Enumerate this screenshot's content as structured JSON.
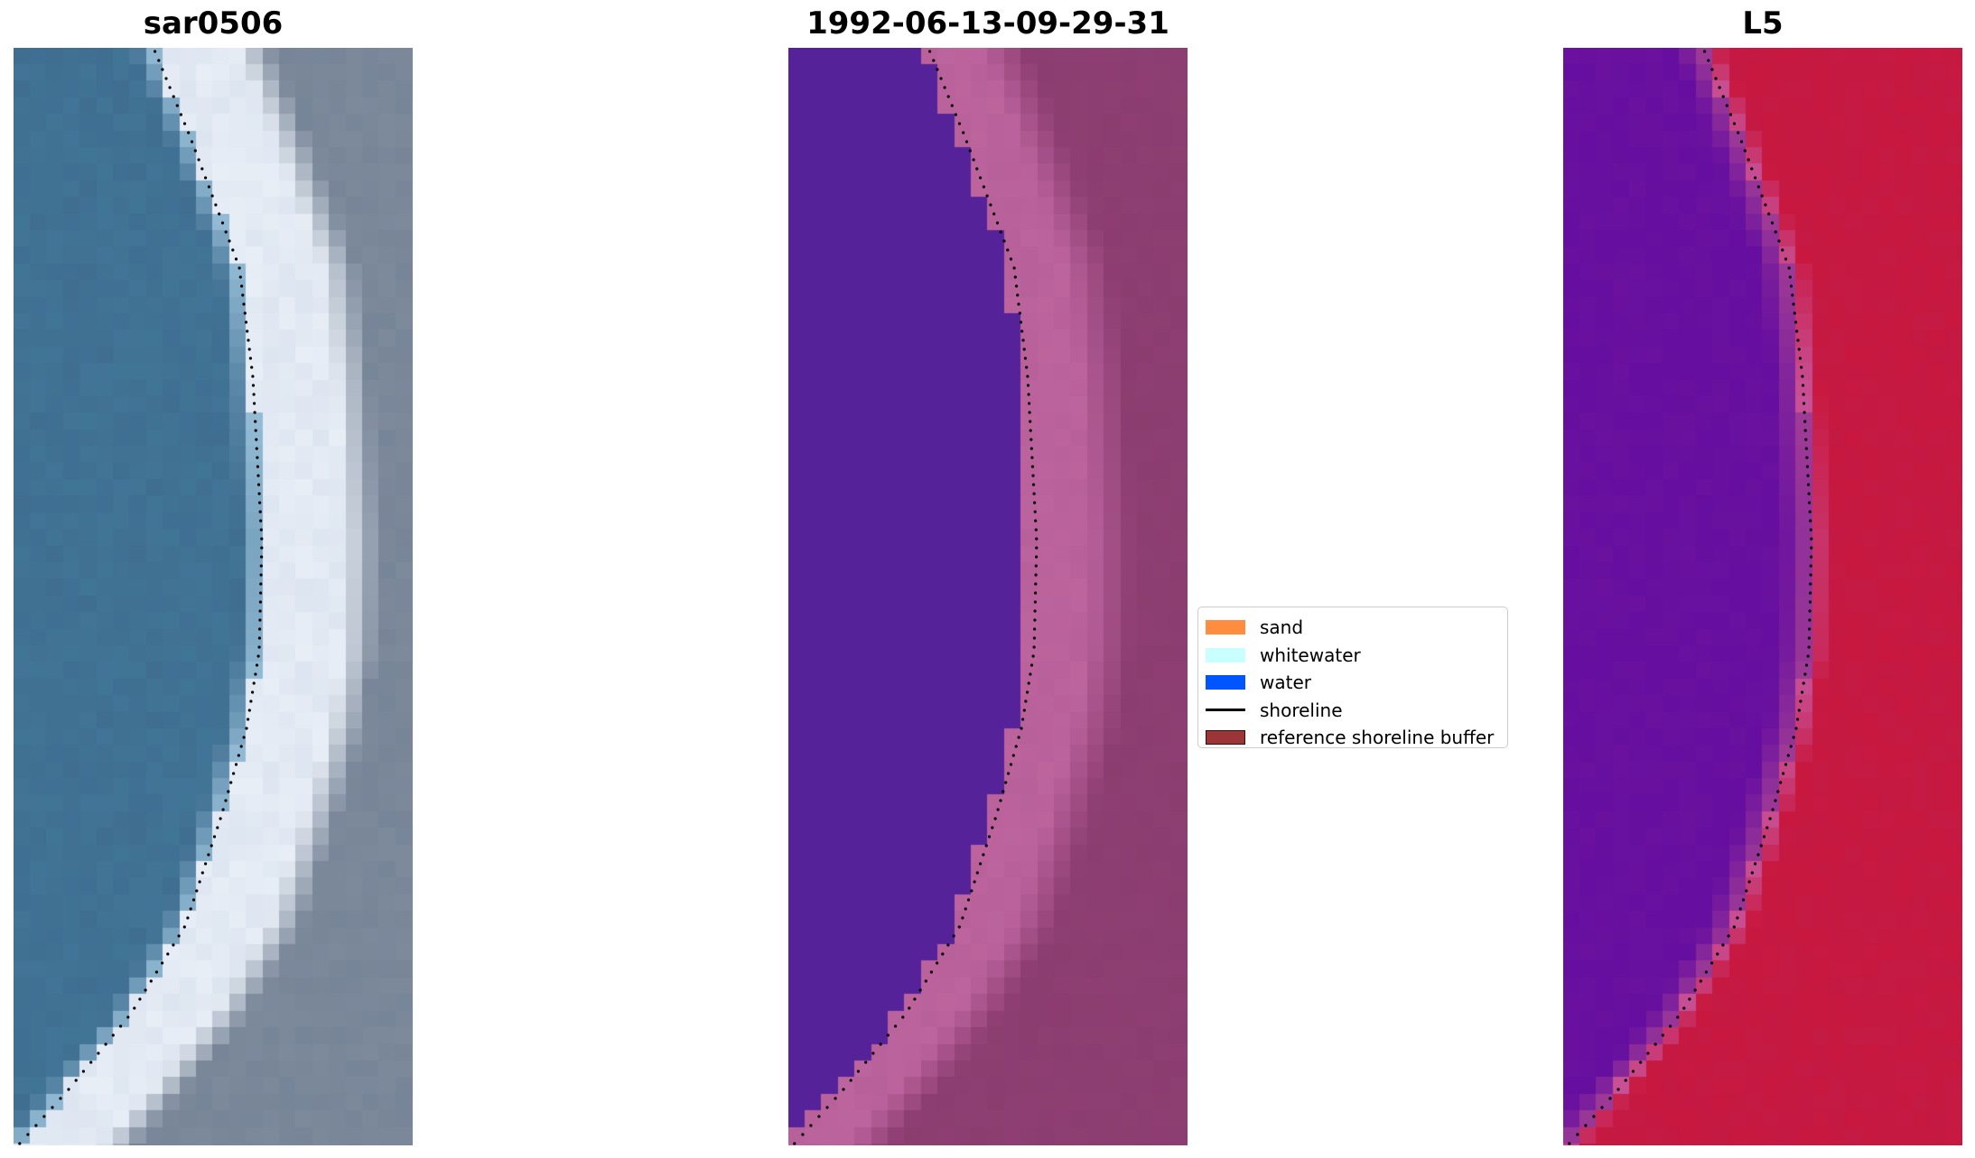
{
  "panels": [
    {
      "title": "sar0506",
      "kind": "rgb"
    },
    {
      "title": "1992-06-13-09-29-31",
      "kind": "classified"
    },
    {
      "title": "L5",
      "kind": "mndwi"
    }
  ],
  "legend": {
    "items": [
      {
        "label": "sand",
        "type": "patch",
        "color": "#ff8c3f"
      },
      {
        "label": "whitewater",
        "type": "patch",
        "color": "#c8ffff"
      },
      {
        "label": "water",
        "type": "patch",
        "color": "#0055ff"
      },
      {
        "label": "shoreline",
        "type": "line",
        "color": "#000000"
      },
      {
        "label": "reference shoreline buffer",
        "type": "patch",
        "color": "#9b3538"
      }
    ]
  },
  "colors": {
    "water_rgb": "#3f6e91",
    "beach_rgb": "#e8eef6",
    "land_rgb": "#7d8a9c",
    "water_class": "#55229a",
    "beach_class": "#b8609a",
    "land_class": "#8b3c70",
    "buffer": "#c23448",
    "water_index": "#6a119f",
    "land_index": "#c8183f"
  }
}
